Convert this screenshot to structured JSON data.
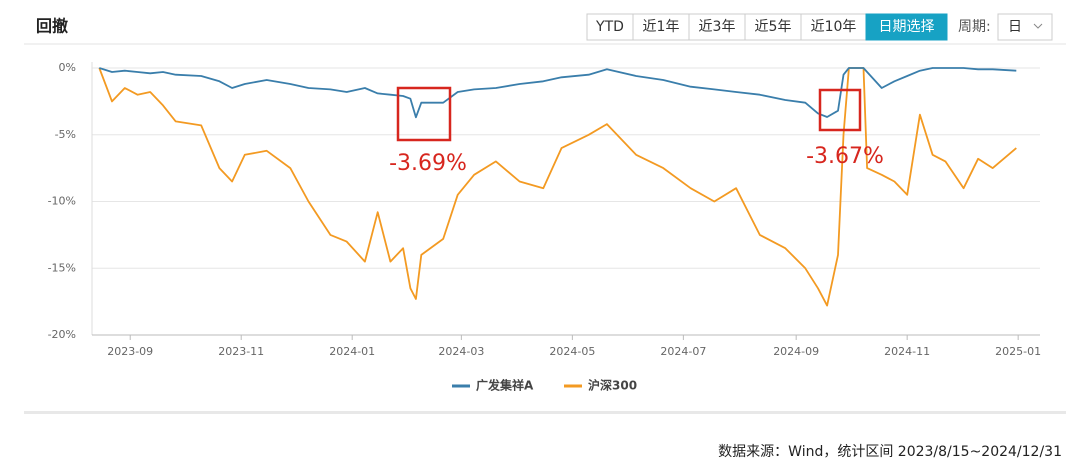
{
  "header": {
    "title": "回撤",
    "buttons": [
      "YTD",
      "近1年",
      "近3年",
      "近5年",
      "近10年",
      "日期选择"
    ],
    "active_button": 5,
    "period_label": "周期:",
    "period_value": "日"
  },
  "source": "数据来源：Wind，统计区间 2023/8/15~2024/12/31",
  "chart_data": {
    "type": "line",
    "x": [
      "2023-08-15",
      "2023-08-22",
      "2023-08-29",
      "2023-09-05",
      "2023-09-12",
      "2023-09-19",
      "2023-09-26",
      "2023-10-10",
      "2023-10-20",
      "2023-10-27",
      "2023-11-03",
      "2023-11-15",
      "2023-11-28",
      "2023-12-08",
      "2023-12-20",
      "2023-12-29",
      "2024-01-08",
      "2024-01-15",
      "2024-01-22",
      "2024-01-29",
      "2024-02-02",
      "2024-02-05",
      "2024-02-08",
      "2024-02-20",
      "2024-02-28",
      "2024-03-08",
      "2024-03-20",
      "2024-04-02",
      "2024-04-15",
      "2024-04-25",
      "2024-05-10",
      "2024-05-20",
      "2024-06-05",
      "2024-06-20",
      "2024-07-05",
      "2024-07-18",
      "2024-07-30",
      "2024-08-12",
      "2024-08-26",
      "2024-09-06",
      "2024-09-13",
      "2024-09-18",
      "2024-09-24",
      "2024-09-27",
      "2024-09-30",
      "2024-10-08",
      "2024-10-10",
      "2024-10-18",
      "2024-10-25",
      "2024-11-01",
      "2024-11-08",
      "2024-11-15",
      "2024-11-22",
      "2024-12-02",
      "2024-12-10",
      "2024-12-18",
      "2024-12-31"
    ],
    "series": [
      {
        "name": "广发集祥A",
        "color": "#3a7eab",
        "values": [
          0,
          -0.3,
          -0.2,
          -0.3,
          -0.4,
          -0.3,
          -0.5,
          -0.6,
          -1.0,
          -1.5,
          -1.2,
          -0.9,
          -1.2,
          -1.5,
          -1.6,
          -1.8,
          -1.5,
          -1.9,
          -2.0,
          -2.1,
          -2.3,
          -3.69,
          -2.6,
          -2.6,
          -1.8,
          -1.6,
          -1.5,
          -1.2,
          -1.0,
          -0.7,
          -0.5,
          -0.1,
          -0.6,
          -0.9,
          -1.4,
          -1.6,
          -1.8,
          -2.0,
          -2.4,
          -2.6,
          -3.4,
          -3.67,
          -3.2,
          -0.5,
          0,
          0,
          -0.3,
          -1.5,
          -1.0,
          -0.6,
          -0.2,
          0,
          0,
          0,
          -0.1,
          -0.1,
          -0.2
        ]
      },
      {
        "name": "沪深300",
        "color": "#f39a22",
        "values": [
          0,
          -2.5,
          -1.5,
          -2.0,
          -1.8,
          -2.8,
          -4.0,
          -4.3,
          -7.5,
          -8.5,
          -6.5,
          -6.2,
          -7.5,
          -10.0,
          -12.5,
          -13.0,
          -14.5,
          -10.8,
          -14.5,
          -13.5,
          -16.5,
          -17.3,
          -14.0,
          -12.8,
          -9.5,
          -8.0,
          -7.0,
          -8.5,
          -9.0,
          -6.0,
          -5.0,
          -4.2,
          -6.5,
          -7.5,
          -9.0,
          -10.0,
          -9.0,
          -12.5,
          -13.5,
          -15.0,
          -16.5,
          -17.8,
          -14.0,
          -5.0,
          0,
          0,
          -7.5,
          -8.0,
          -8.5,
          -9.5,
          -3.5,
          -6.5,
          -7.0,
          -9.0,
          -6.8,
          -7.5,
          -6.0
        ]
      }
    ],
    "xlim": [
      "2023-08-11",
      "2025-01-13"
    ],
    "xticks": [
      "2023-09",
      "2023-11",
      "2024-01",
      "2024-03",
      "2024-05",
      "2024-07",
      "2024-09",
      "2024-11",
      "2025-01"
    ],
    "ylim": [
      -20,
      0
    ],
    "yticks": [
      {
        "value": 0,
        "label": "0%"
      },
      {
        "value": -5,
        "label": "-5%"
      },
      {
        "value": -10,
        "label": "-10%"
      },
      {
        "value": -15,
        "label": "-15%"
      },
      {
        "value": -20,
        "label": "-20%"
      }
    ],
    "grid": true,
    "annotations": [
      {
        "text": "-3.69%"
      },
      {
        "text": "-3.67%"
      }
    ]
  }
}
